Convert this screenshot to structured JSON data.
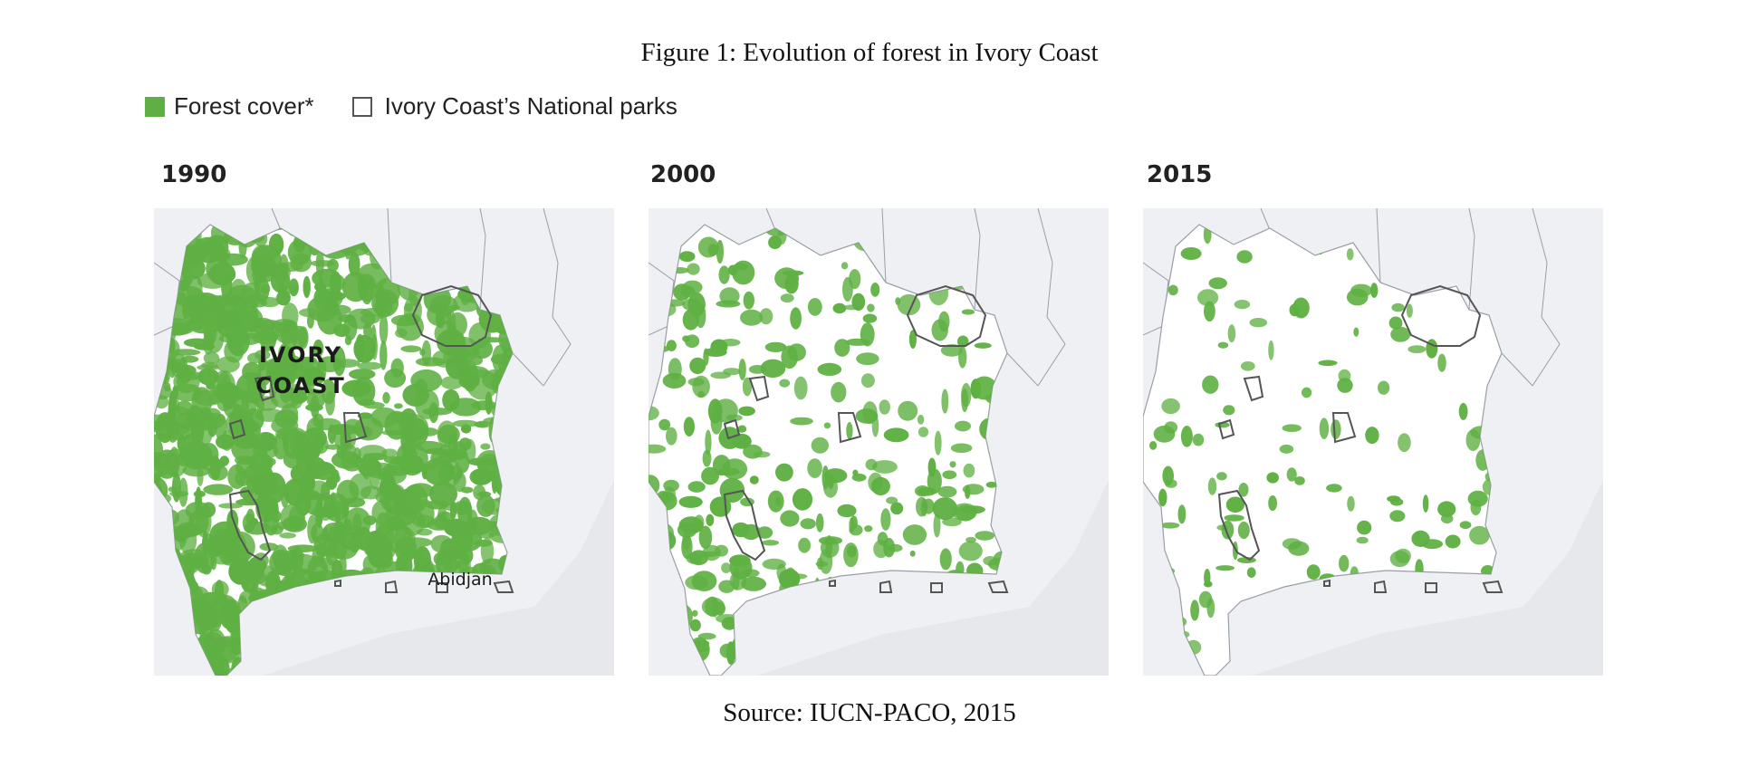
{
  "figure": {
    "title": "Figure 1:  Evolution of forest in Ivory Coast",
    "source": "Source:  IUCN-PACO, 2015"
  },
  "legend": {
    "forest_label": "Forest cover*",
    "parks_label": "Ivory Coast’s National parks"
  },
  "colors": {
    "forest": "#5fb043",
    "land": "#ffffff",
    "sea": "#e6e8ec",
    "border": "#9a9ea6",
    "park_outline": "#555555"
  },
  "maps": [
    {
      "year": "1990",
      "forest_level": 0.85,
      "labels": {
        "country_line1": "IVORY",
        "country_line2": "COAST",
        "city": "Abidjan"
      }
    },
    {
      "year": "2000",
      "forest_level": 0.5
    },
    {
      "year": "2015",
      "forest_level": 0.3
    }
  ]
}
